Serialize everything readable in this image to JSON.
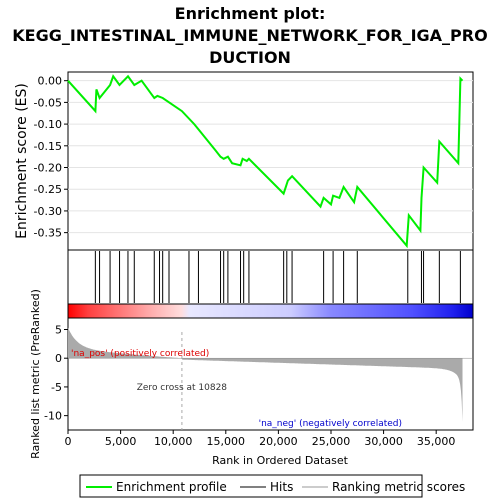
{
  "chart_data": {
    "type": "line",
    "title_lines": [
      "Enrichment plot:",
      "KEGG_INTESTINAL_IMMUNE_NETWORK_FOR_IGA_PRO",
      "DUCTION"
    ],
    "es_panel": {
      "ylabel": "Enrichment score (ES)",
      "ylim": [
        -0.39,
        0.02
      ],
      "yticks": [
        0.0,
        -0.05,
        -0.1,
        -0.15,
        -0.2,
        -0.25,
        -0.3,
        -0.35
      ],
      "ytick_labels": [
        "0.00",
        "-0.05",
        "-0.10",
        "-0.15",
        "-0.20",
        "-0.25",
        "-0.30",
        "-0.35"
      ],
      "series_name": "Enrichment profile",
      "line_color": "#00ee00",
      "x": [
        0,
        2600,
        2700,
        3000,
        4000,
        4300,
        4900,
        5700,
        6300,
        7000,
        7900,
        8200,
        8500,
        9000,
        10828,
        12000,
        14000,
        14500,
        14800,
        15200,
        15600,
        16400,
        16600,
        17000,
        17200,
        20500,
        20700,
        20900,
        21300,
        24000,
        24300,
        25000,
        25200,
        25800,
        26200,
        27200,
        27500,
        32200,
        32400,
        33500,
        33600,
        33800,
        35100,
        35300,
        37100,
        37300,
        37500
      ],
      "y": [
        0.0,
        -0.07,
        -0.02,
        -0.04,
        -0.01,
        0.01,
        -0.01,
        0.01,
        -0.01,
        0.0,
        -0.03,
        -0.04,
        -0.035,
        -0.04,
        -0.07,
        -0.1,
        -0.16,
        -0.175,
        -0.18,
        -0.175,
        -0.19,
        -0.195,
        -0.18,
        -0.185,
        -0.18,
        -0.26,
        -0.245,
        -0.23,
        -0.22,
        -0.29,
        -0.27,
        -0.285,
        -0.265,
        -0.27,
        -0.245,
        -0.28,
        -0.245,
        -0.38,
        -0.31,
        -0.345,
        -0.27,
        -0.2,
        -0.235,
        -0.14,
        -0.19,
        0.005,
        0.0
      ]
    },
    "hits": [
      2600,
      3000,
      4000,
      4900,
      5700,
      6300,
      8200,
      8700,
      9000,
      9600,
      11500,
      12400,
      14500,
      14800,
      15200,
      16400,
      16700,
      17200,
      20500,
      20800,
      21300,
      24300,
      25200,
      26200,
      27500,
      32300,
      33600,
      33800,
      35300,
      37300
    ],
    "xlim": [
      0,
      38500
    ],
    "xticks": [
      0,
      5000,
      10000,
      15000,
      20000,
      25000,
      30000,
      35000
    ],
    "xtick_labels": [
      "0",
      "5,000",
      "10,000",
      "15,000",
      "20,000",
      "25,000",
      "30,000",
      "35,000"
    ],
    "xlabel": "Rank in Ordered Dataset",
    "metric_panel": {
      "ylabel": "Ranked list metric (PreRanked)",
      "ylim": [
        -12.5,
        7
      ],
      "yticks": [
        5,
        0,
        -5,
        -10
      ],
      "ytick_labels": [
        "5",
        "0",
        "-5",
        "-10"
      ],
      "zero_cross": 10828,
      "zero_cross_label": "Zero cross at 10828",
      "pos_label": "'na_pos' (positively correlated)",
      "neg_label": "'na_neg' (negatively correlated)",
      "fill_color": "#aaaaaa",
      "total_ranks": 37500
    },
    "colors": {
      "hit_line": "#000000",
      "pos_label": "#dd0000",
      "neg_label": "#0000cc",
      "bar_red": "#ff0000",
      "bar_blue": "#0000ff"
    },
    "legend": {
      "placement": "bottom",
      "items": [
        {
          "label": "Enrichment profile",
          "color": "#00ee00",
          "kind": "line"
        },
        {
          "label": "Hits",
          "color": "#000000",
          "kind": "line"
        },
        {
          "label": "Ranking metric scores",
          "color": "#cccccc",
          "kind": "line"
        }
      ]
    }
  }
}
